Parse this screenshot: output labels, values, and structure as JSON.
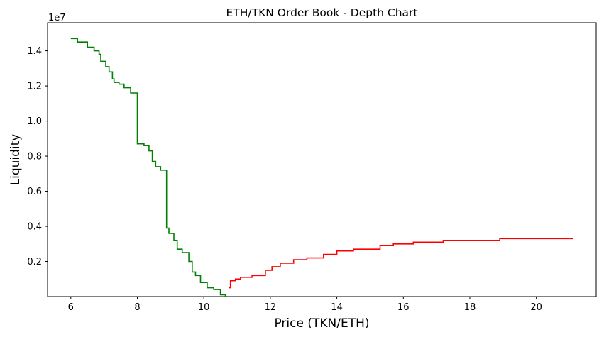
{
  "chart_data": {
    "type": "line",
    "title": "ETH/TKN Order Book - Depth Chart",
    "xlabel": "Price (TKN/ETH)",
    "ylabel": "Liquidity",
    "y_offset_text": "1e7",
    "xlim": [
      5.3,
      21.8
    ],
    "ylim": [
      0,
      1.56
    ],
    "x_ticks": [
      6,
      8,
      10,
      12,
      14,
      16,
      18,
      20
    ],
    "x_tick_labels": [
      "6",
      "8",
      "10",
      "12",
      "14",
      "16",
      "18",
      "20"
    ],
    "y_ticks": [
      0.2,
      0.4,
      0.6,
      0.8,
      1.0,
      1.2,
      1.4
    ],
    "y_tick_labels": [
      "0.2",
      "0.4",
      "0.6",
      "0.8",
      "1.0",
      "1.2",
      "1.4"
    ],
    "grid": false,
    "legend": "none",
    "series": [
      {
        "color": "#008000",
        "step": true,
        "x": [
          6.0,
          6.2,
          6.5,
          6.7,
          6.85,
          6.9,
          7.05,
          7.15,
          7.25,
          7.3,
          7.45,
          7.6,
          7.8,
          8.0,
          8.0,
          8.2,
          8.35,
          8.45,
          8.55,
          8.7,
          8.88,
          8.88,
          8.95,
          9.1,
          9.2,
          9.35,
          9.55,
          9.65,
          9.75,
          9.9,
          10.1,
          10.3,
          10.5,
          10.65,
          10.7
        ],
        "y": [
          1.47,
          1.45,
          1.42,
          1.4,
          1.38,
          1.34,
          1.31,
          1.28,
          1.24,
          1.22,
          1.21,
          1.19,
          1.16,
          1.16,
          0.87,
          0.86,
          0.83,
          0.77,
          0.74,
          0.72,
          0.7,
          0.39,
          0.36,
          0.32,
          0.27,
          0.25,
          0.2,
          0.14,
          0.12,
          0.08,
          0.05,
          0.04,
          0.01,
          0.0,
          0.0
        ]
      },
      {
        "color": "#ff0000",
        "step": true,
        "x": [
          10.75,
          10.8,
          10.95,
          11.1,
          11.45,
          11.85,
          12.05,
          12.3,
          12.7,
          13.1,
          13.6,
          14.0,
          14.5,
          15.3,
          15.7,
          16.3,
          17.2,
          17.8,
          18.9,
          21.1
        ],
        "y": [
          0.05,
          0.09,
          0.1,
          0.11,
          0.12,
          0.15,
          0.17,
          0.19,
          0.21,
          0.22,
          0.24,
          0.26,
          0.27,
          0.29,
          0.3,
          0.31,
          0.32,
          0.32,
          0.33,
          0.33
        ]
      }
    ]
  }
}
